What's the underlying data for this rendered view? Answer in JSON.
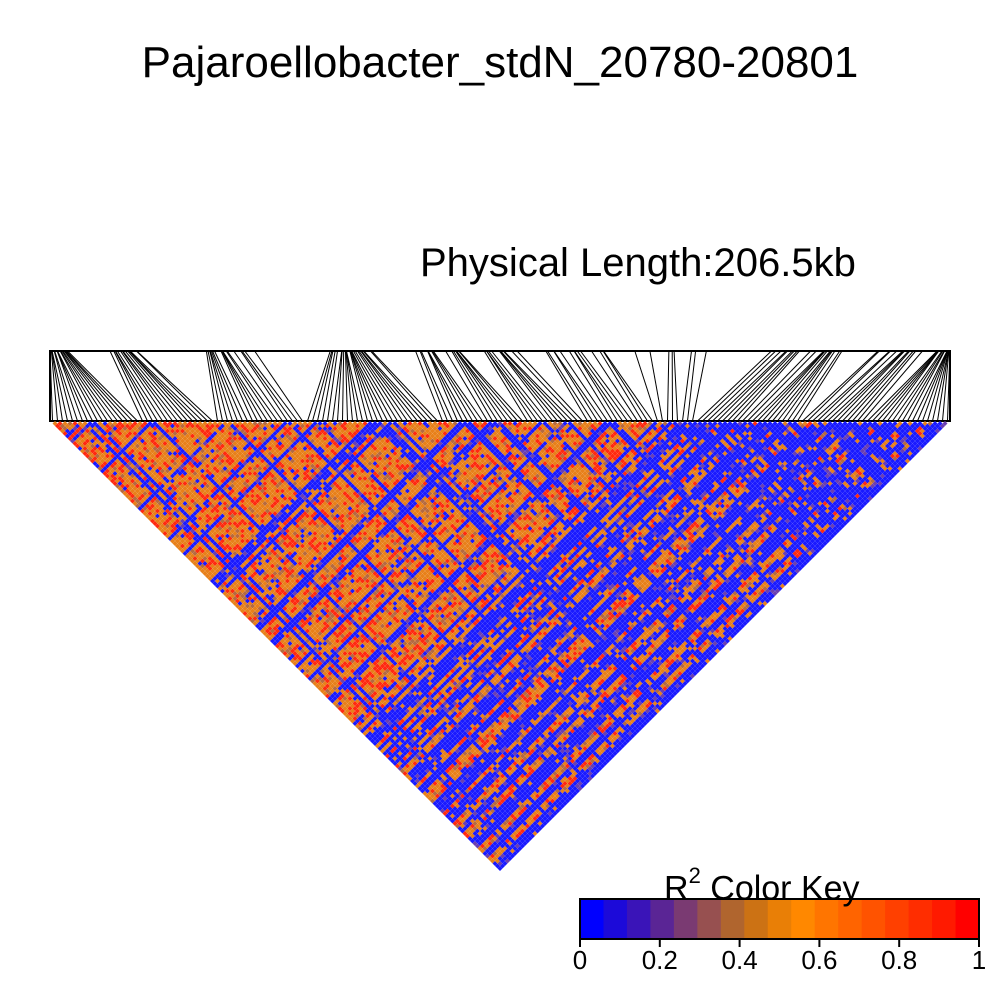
{
  "chart_data": {
    "type": "heatmap",
    "title": "Pajaroellobacter_stdN_20780-20801",
    "subtitle": "Physical Length:206.5kb",
    "color_key": {
      "title_main": "R",
      "title_sup": "2",
      "title_rest": " Color Key",
      "ticks": [
        "0",
        "0.2",
        "0.4",
        "0.6",
        "0.8",
        "1"
      ],
      "tick_values": [
        0,
        0.2,
        0.4,
        0.6,
        0.8,
        1
      ],
      "range": [
        0,
        1
      ],
      "colors": [
        "#0000ff",
        "#1c0ad9",
        "#3a14b8",
        "#5a2595",
        "#7a3a72",
        "#975050",
        "#b0652e",
        "#cc7214",
        "#e97f06",
        "#ff8800",
        "#ff7500",
        "#ff6400",
        "#ff5300",
        "#ff4000",
        "#ff2d00",
        "#ff1a00",
        "#ff0000"
      ]
    },
    "ld_matrix": {
      "snp_count": 180,
      "physical_length_kb": 206.5,
      "low_ld_color": "#1a1aff",
      "mid_ld_color": "#e8801a",
      "high_ld_color": "#ff2a10"
    }
  }
}
